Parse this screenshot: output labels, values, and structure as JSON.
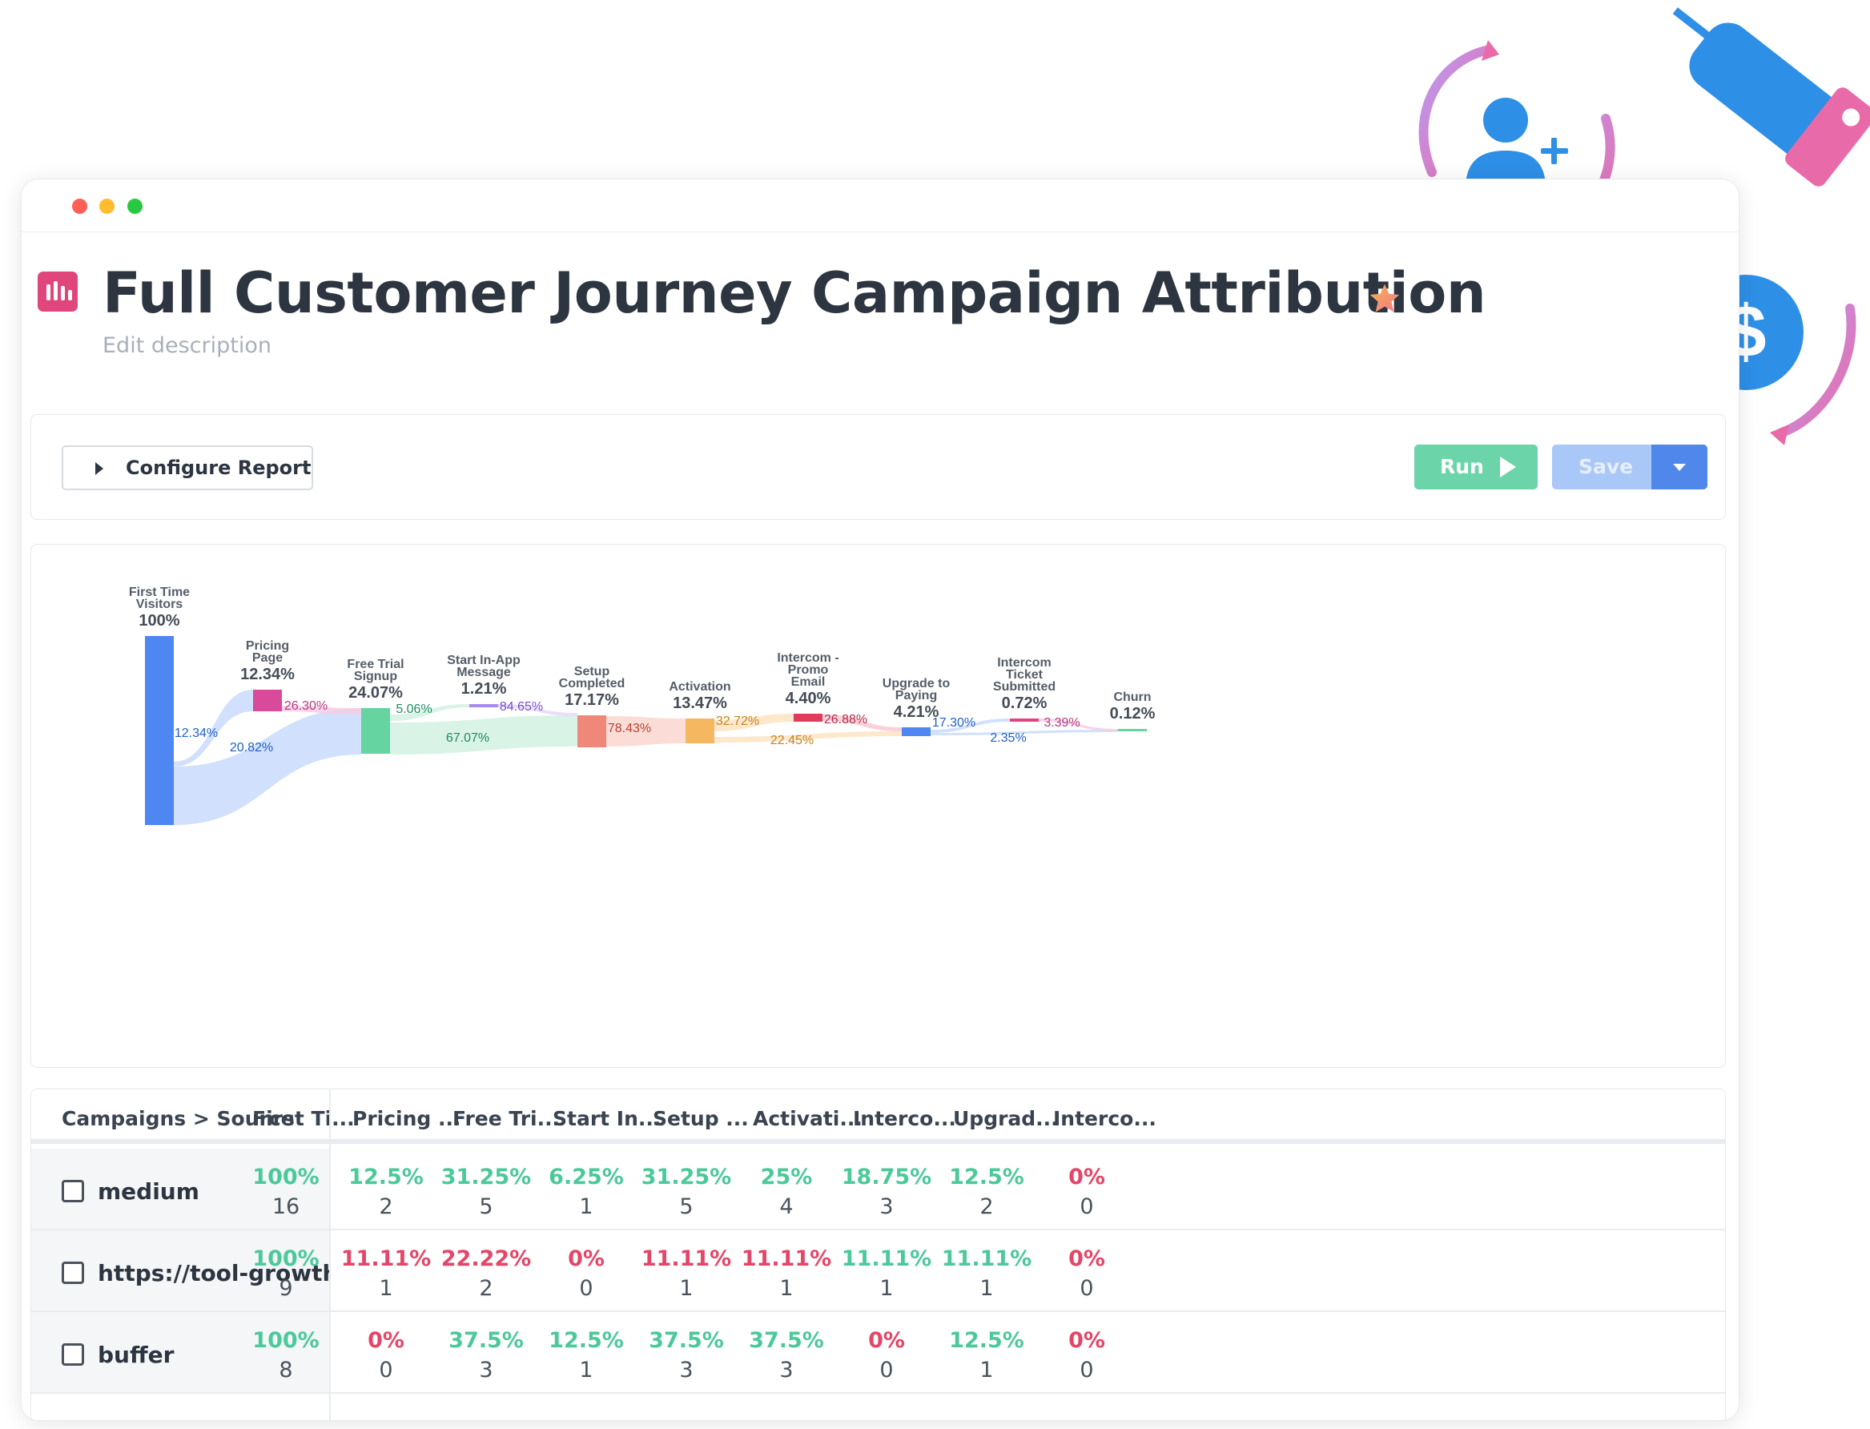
{
  "window": {
    "title": "Full Customer Journey Campaign Attribution",
    "description_placeholder": "Edit description"
  },
  "toolbar": {
    "configure_label": "Configure Report",
    "run_label": "Run",
    "save_label": "Save"
  },
  "colors": {
    "run": "#6cd4a9",
    "save": "#aac8f7",
    "save_dropdown": "#4f87ea",
    "good": "#4cc99a",
    "bad": "#e44668",
    "star": "#f79a55",
    "report_icon": "#e0457b"
  },
  "icons": {
    "report": "report-bars-icon",
    "star": "star-icon",
    "configure": "caret-right-icon",
    "run": "play-icon",
    "save_dropdown": "chevron-down-icon",
    "deco": [
      "add-user-icon",
      "handshake-icon",
      "dollar-coin-icon",
      "cycle-arrow-icon"
    ]
  },
  "chart_data": {
    "type": "sankey",
    "nodes": [
      {
        "name_lines": [
          "First Time",
          "Visitors"
        ],
        "value_label": "100%",
        "value": 100,
        "color": "#4f87f2"
      },
      {
        "name_lines": [
          "Pricing",
          "Page"
        ],
        "value_label": "12.34%",
        "value": 12.34,
        "color": "#d94a9b"
      },
      {
        "name_lines": [
          "Free Trial",
          "Signup"
        ],
        "value_label": "24.07%",
        "value": 24.07,
        "color": "#66d4a0"
      },
      {
        "name_lines": [
          "Start In-App",
          "Message"
        ],
        "value_label": "1.21%",
        "value": 1.21,
        "color": "#a98bf0"
      },
      {
        "name_lines": [
          "Setup",
          "Completed"
        ],
        "value_label": "17.17%",
        "value": 17.17,
        "color": "#f0887a"
      },
      {
        "name_lines": [
          "Activation"
        ],
        "value_label": "13.47%",
        "value": 13.47,
        "color": "#f5b860"
      },
      {
        "name_lines": [
          "Intercom -",
          "Promo",
          "Email"
        ],
        "value_label": "4.40%",
        "value": 4.4,
        "color": "#e23a5b"
      },
      {
        "name_lines": [
          "Upgrade to",
          "Paying"
        ],
        "value_label": "4.21%",
        "value": 4.21,
        "color": "#4f87f2"
      },
      {
        "name_lines": [
          "Intercom",
          "Ticket",
          "Submitted"
        ],
        "value_label": "0.72%",
        "value": 0.72,
        "color": "#e0437e"
      },
      {
        "name_lines": [
          "Churn"
        ],
        "value_label": "0.12%",
        "value": 0.12,
        "color": "#66d4a0"
      }
    ],
    "links": [
      {
        "from": 0,
        "to": 1,
        "label": "12.34%"
      },
      {
        "from": 0,
        "to": 2,
        "label": "20.82%"
      },
      {
        "from": 1,
        "to": 2,
        "label": "26.30%"
      },
      {
        "from": 2,
        "to": 3,
        "label": "5.06%"
      },
      {
        "from": 2,
        "to": 4,
        "label": "67.07%"
      },
      {
        "from": 3,
        "to": 4,
        "label": "84.65%"
      },
      {
        "from": 4,
        "to": 5,
        "label": "78.43%"
      },
      {
        "from": 5,
        "to": 6,
        "label": "32.72%"
      },
      {
        "from": 5,
        "to": 7,
        "label": "22.45%"
      },
      {
        "from": 6,
        "to": 7,
        "label": "26.88%"
      },
      {
        "from": 7,
        "to": 8,
        "label": "17.30%"
      },
      {
        "from": 7,
        "to": 9,
        "label": "2.35%"
      },
      {
        "from": 8,
        "to": 9,
        "label": "3.39%"
      }
    ]
  },
  "table": {
    "first_header": "Campaigns > Source",
    "headers": [
      "First Ti...",
      "Pricing ...",
      "Free Tri...",
      "Start In...",
      "Setup ...",
      "Activati...",
      "Interco...",
      "Upgrad...",
      "Interco..."
    ],
    "rows": [
      {
        "label": "medium",
        "cells": [
          {
            "pct": "100%",
            "count": "16",
            "status": "good"
          },
          {
            "pct": "12.5%",
            "count": "2",
            "status": "good"
          },
          {
            "pct": "31.25%",
            "count": "5",
            "status": "good"
          },
          {
            "pct": "6.25%",
            "count": "1",
            "status": "good"
          },
          {
            "pct": "31.25%",
            "count": "5",
            "status": "good"
          },
          {
            "pct": "25%",
            "count": "4",
            "status": "good"
          },
          {
            "pct": "18.75%",
            "count": "3",
            "status": "good"
          },
          {
            "pct": "12.5%",
            "count": "2",
            "status": "good"
          },
          {
            "pct": "0%",
            "count": "0",
            "status": "bad"
          }
        ]
      },
      {
        "label": "https://tool-growth-hacking",
        "cells": [
          {
            "pct": "100%",
            "count": "9",
            "status": "good"
          },
          {
            "pct": "11.11%",
            "count": "1",
            "status": "bad"
          },
          {
            "pct": "22.22%",
            "count": "2",
            "status": "bad"
          },
          {
            "pct": "0%",
            "count": "0",
            "status": "bad"
          },
          {
            "pct": "11.11%",
            "count": "1",
            "status": "bad"
          },
          {
            "pct": "11.11%",
            "count": "1",
            "status": "bad"
          },
          {
            "pct": "11.11%",
            "count": "1",
            "status": "good"
          },
          {
            "pct": "11.11%",
            "count": "1",
            "status": "good"
          },
          {
            "pct": "0%",
            "count": "0",
            "status": "bad"
          }
        ]
      },
      {
        "label": "buffer",
        "cells": [
          {
            "pct": "100%",
            "count": "8",
            "status": "good"
          },
          {
            "pct": "0%",
            "count": "0",
            "status": "bad"
          },
          {
            "pct": "37.5%",
            "count": "3",
            "status": "good"
          },
          {
            "pct": "12.5%",
            "count": "1",
            "status": "good"
          },
          {
            "pct": "37.5%",
            "count": "3",
            "status": "good"
          },
          {
            "pct": "37.5%",
            "count": "3",
            "status": "good"
          },
          {
            "pct": "0%",
            "count": "0",
            "status": "bad"
          },
          {
            "pct": "12.5%",
            "count": "1",
            "status": "good"
          },
          {
            "pct": "0%",
            "count": "0",
            "status": "bad"
          }
        ]
      }
    ]
  }
}
